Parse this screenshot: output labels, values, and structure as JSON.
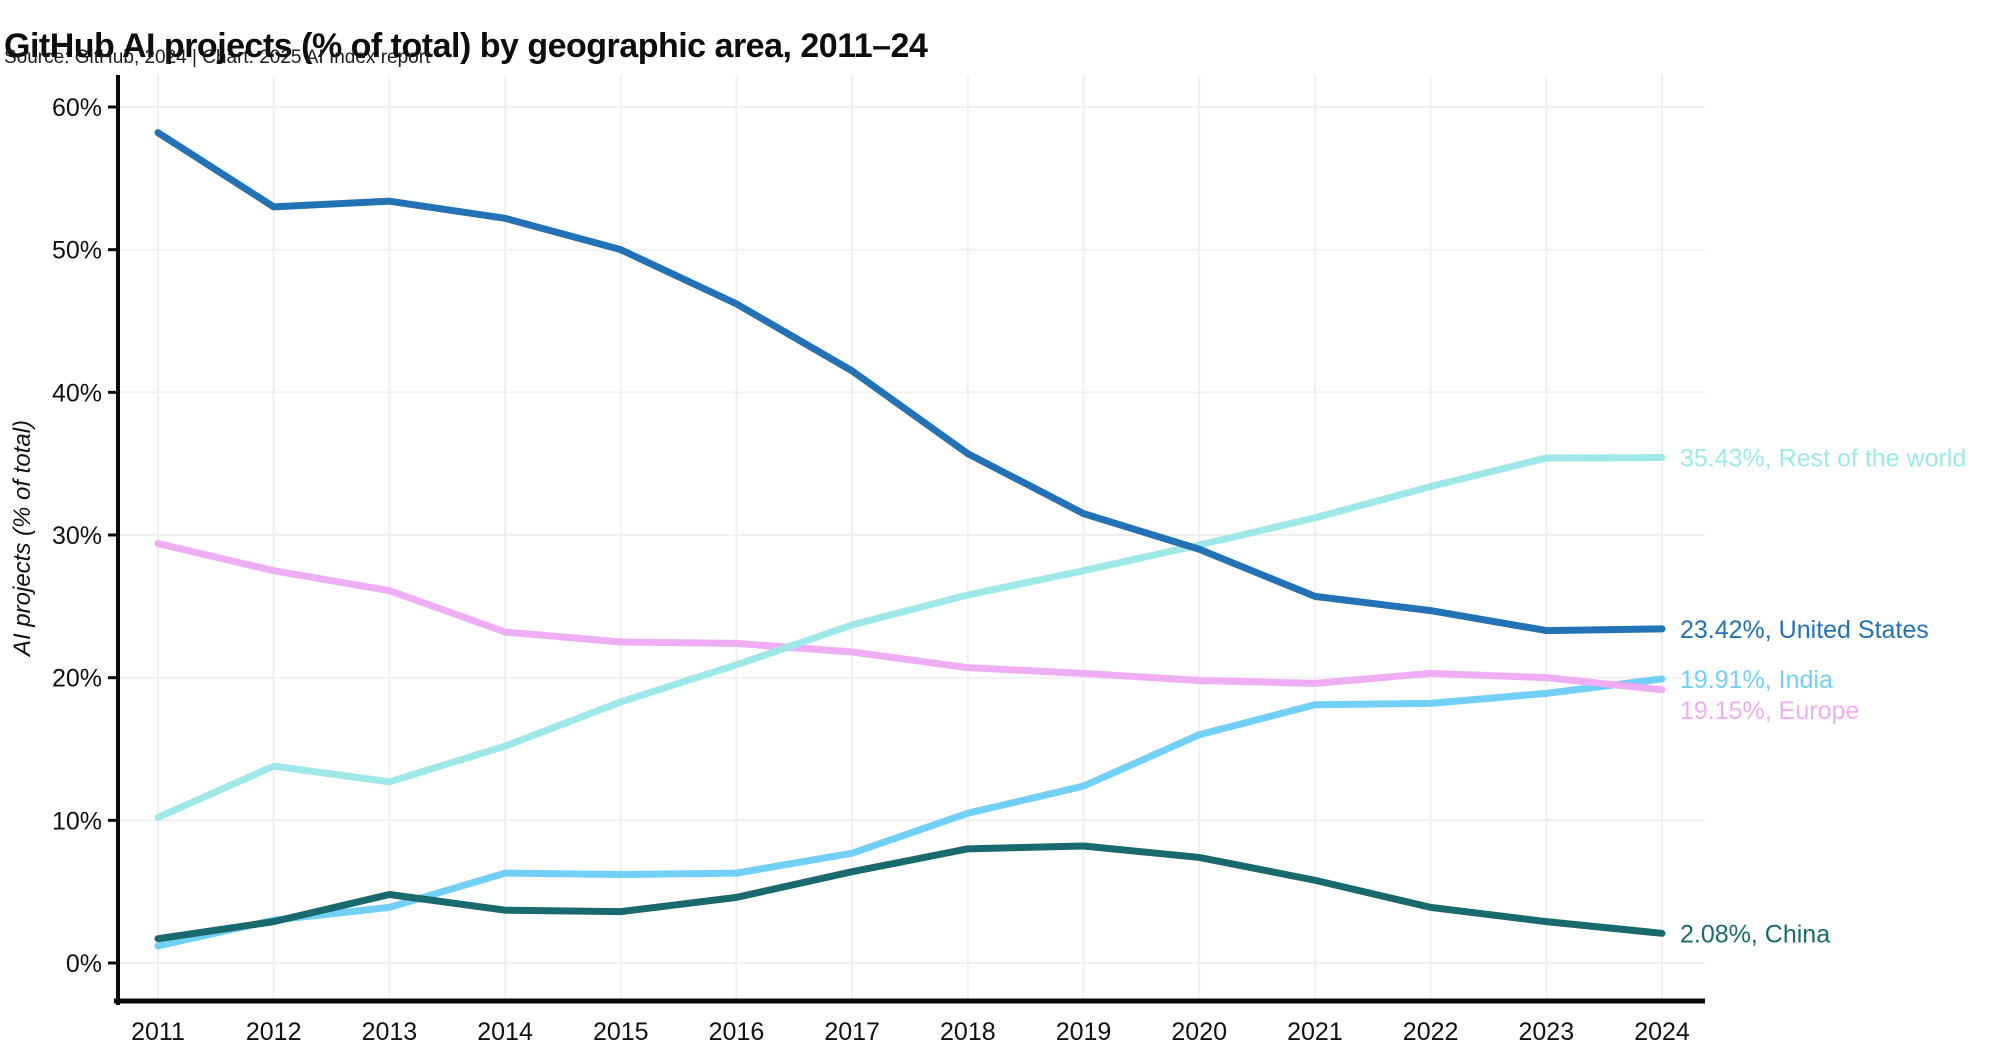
{
  "header": {
    "title": "GitHub AI projects (% of total) by geographic area, 2011–24",
    "subtitle": "Source: GitHub, 2024 | Chart: 2025 AI Index report"
  },
  "chart_data": {
    "type": "line",
    "title": "GitHub AI projects (% of total) by geographic area, 2011–24",
    "source_note": "Source: GitHub, 2024 | Chart: 2025 AI Index report",
    "x": [
      2011,
      2012,
      2013,
      2014,
      2015,
      2016,
      2017,
      2018,
      2019,
      2020,
      2021,
      2022,
      2023,
      2024
    ],
    "xtick_labels": [
      "2011",
      "2012",
      "2013",
      "2014",
      "2015",
      "2016",
      "2017",
      "2018",
      "2019",
      "2020",
      "2021",
      "2022",
      "2023",
      "2024"
    ],
    "xlabel": "",
    "ylabel": "AI projects (% of total)",
    "ylim": [
      0,
      60
    ],
    "yticks": [
      0,
      10,
      20,
      30,
      40,
      50,
      60
    ],
    "ytick_labels": [
      "0%",
      "10%",
      "20%",
      "30%",
      "40%",
      "50%",
      "60%"
    ],
    "grid": true,
    "legend_position": "end-of-line-labels",
    "axis_color": "#0a0a0a",
    "gridline_color": "#f0f0f0",
    "series": [
      {
        "name": "India",
        "color": "#72cff6",
        "end_label": "19.91%, India",
        "values": [
          1.2,
          3.0,
          3.9,
          6.3,
          6.2,
          6.3,
          7.7,
          10.5,
          12.4,
          16.0,
          18.1,
          18.2,
          18.9,
          19.91
        ]
      },
      {
        "name": "China",
        "color": "#186a6d",
        "end_label": "2.08%, China",
        "values": [
          1.7,
          2.9,
          4.8,
          3.7,
          3.6,
          4.6,
          6.4,
          8.0,
          8.2,
          7.4,
          5.8,
          3.9,
          2.9,
          2.08
        ]
      },
      {
        "name": "Europe",
        "color": "#efadf4",
        "end_label": "19.15%, Europe",
        "values": [
          29.4,
          27.5,
          26.1,
          23.2,
          22.5,
          22.4,
          21.8,
          20.7,
          20.3,
          19.8,
          19.6,
          20.3,
          20.0,
          19.15
        ]
      },
      {
        "name": "Rest of the world",
        "color": "#9ee9e7",
        "end_label": "35.43%, Rest of the world",
        "values": [
          10.2,
          13.8,
          12.7,
          15.2,
          18.3,
          20.9,
          23.7,
          25.8,
          27.5,
          29.3,
          31.2,
          33.4,
          35.4,
          35.43
        ]
      },
      {
        "name": "United States",
        "color": "#2272b5",
        "end_label": "23.42%, United States",
        "values": [
          58.2,
          53.0,
          53.4,
          52.2,
          50.0,
          46.2,
          41.5,
          35.7,
          31.5,
          29.0,
          25.7,
          24.7,
          23.3,
          23.42
        ]
      }
    ]
  }
}
